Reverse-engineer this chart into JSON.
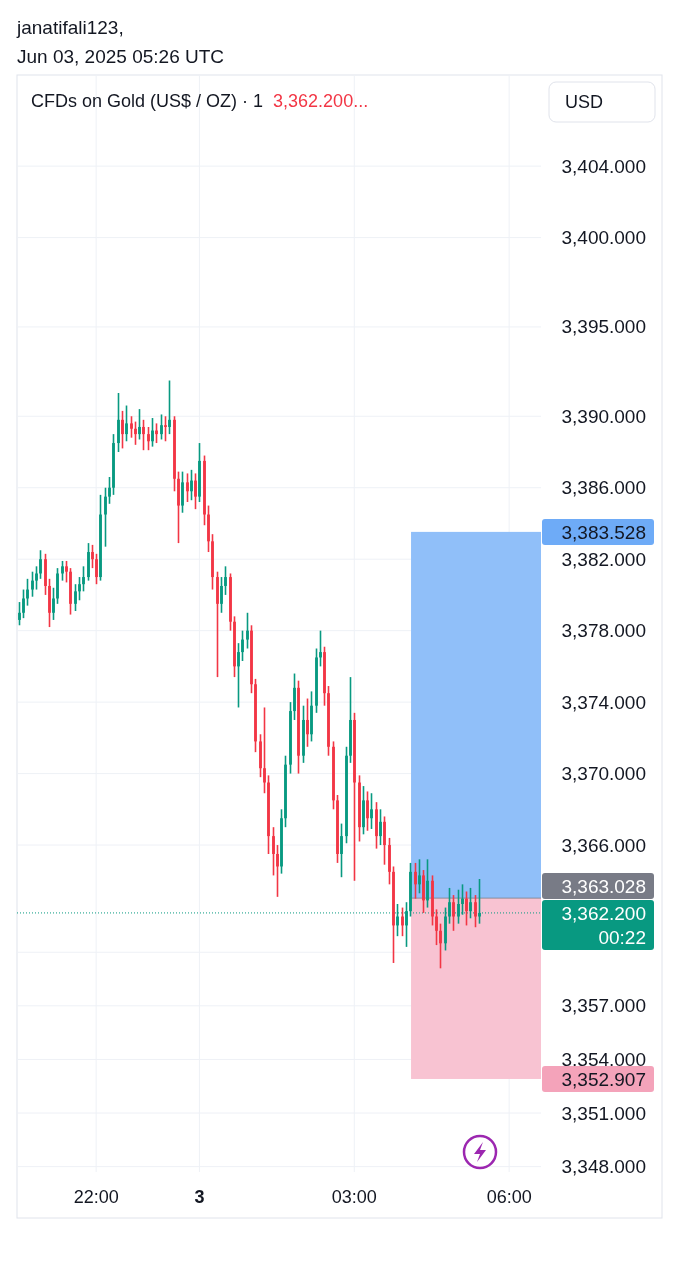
{
  "chart_data": {
    "type": "candlestick",
    "title": "CFDs on Gold (US$ / OZ) · 1",
    "subtitle": "3,362.200...",
    "ylabel": "USD",
    "annotations": [
      "janatifali123,",
      "Jun 03, 2025 05:26 UTC"
    ],
    "x": [
      "2025-06-02T20:30",
      "2025-06-02T20:35",
      "2025-06-02T20:40",
      "2025-06-02T20:45",
      "2025-06-02T20:50",
      "2025-06-02T20:55",
      "2025-06-02T21:00",
      "2025-06-02T21:05",
      "2025-06-02T21:10",
      "2025-06-02T21:15",
      "2025-06-02T21:20",
      "2025-06-02T21:25",
      "2025-06-02T21:30",
      "2025-06-02T21:35",
      "2025-06-02T21:40",
      "2025-06-02T21:45",
      "2025-06-02T21:50",
      "2025-06-02T21:55",
      "2025-06-02T22:00",
      "2025-06-02T22:05",
      "2025-06-02T22:10",
      "2025-06-02T22:15",
      "2025-06-02T22:20",
      "2025-06-02T22:25",
      "2025-06-02T22:30",
      "2025-06-02T22:35",
      "2025-06-02T22:40",
      "2025-06-02T22:45",
      "2025-06-02T22:50",
      "2025-06-02T22:55",
      "2025-06-02T23:00",
      "2025-06-02T23:05",
      "2025-06-02T23:10",
      "2025-06-02T23:15",
      "2025-06-02T23:20",
      "2025-06-02T23:25",
      "2025-06-02T23:30",
      "2025-06-02T23:35",
      "2025-06-02T23:40",
      "2025-06-02T23:45",
      "2025-06-02T23:50",
      "2025-06-02T23:55",
      "2025-06-03T00:00",
      "2025-06-03T00:05",
      "2025-06-03T00:10",
      "2025-06-03T00:15",
      "2025-06-03T00:20",
      "2025-06-03T00:25",
      "2025-06-03T00:30",
      "2025-06-03T00:35",
      "2025-06-03T00:40",
      "2025-06-03T00:45",
      "2025-06-03T00:50",
      "2025-06-03T00:55",
      "2025-06-03T01:00",
      "2025-06-03T01:05",
      "2025-06-03T01:10",
      "2025-06-03T01:15",
      "2025-06-03T01:20",
      "2025-06-03T01:25",
      "2025-06-03T01:30",
      "2025-06-03T01:35",
      "2025-06-03T01:40",
      "2025-06-03T01:45",
      "2025-06-03T01:50",
      "2025-06-03T01:55",
      "2025-06-03T02:00",
      "2025-06-03T02:05",
      "2025-06-03T02:10",
      "2025-06-03T02:15",
      "2025-06-03T02:20",
      "2025-06-03T02:25",
      "2025-06-03T02:30",
      "2025-06-03T02:35",
      "2025-06-03T02:40",
      "2025-06-03T02:45",
      "2025-06-03T02:50",
      "2025-06-03T02:55",
      "2025-06-03T03:00",
      "2025-06-03T03:05",
      "2025-06-03T03:10",
      "2025-06-03T03:15",
      "2025-06-03T03:20",
      "2025-06-03T03:25",
      "2025-06-03T03:30",
      "2025-06-03T03:35",
      "2025-06-03T03:40",
      "2025-06-03T03:45",
      "2025-06-03T03:50",
      "2025-06-03T03:55",
      "2025-06-03T04:00",
      "2025-06-03T04:05",
      "2025-06-03T04:10",
      "2025-06-03T04:15",
      "2025-06-03T04:20",
      "2025-06-03T04:25",
      "2025-06-03T04:30",
      "2025-06-03T04:35",
      "2025-06-03T04:40",
      "2025-06-03T04:45",
      "2025-06-03T04:50",
      "2025-06-03T04:55",
      "2025-06-03T05:00",
      "2025-06-03T05:05",
      "2025-06-03T05:10",
      "2025-06-03T05:15",
      "2025-06-03T05:20",
      "2025-06-03T05:25"
    ],
    "ohlc": [
      [
        3378.6,
        3379.6,
        3378.3,
        3379.0
      ],
      [
        3379.0,
        3380.3,
        3378.7,
        3379.8
      ],
      [
        3379.8,
        3380.9,
        3379.4,
        3380.3
      ],
      [
        3380.3,
        3381.3,
        3379.9,
        3380.8
      ],
      [
        3380.8,
        3381.6,
        3380.3,
        3381.2
      ],
      [
        3381.2,
        3382.5,
        3380.9,
        3382.0
      ],
      [
        3382.0,
        3382.3,
        3380.0,
        3380.5
      ],
      [
        3380.5,
        3380.9,
        3378.2,
        3379.0
      ],
      [
        3379.0,
        3380.4,
        3378.6,
        3379.8
      ],
      [
        3379.8,
        3381.5,
        3379.5,
        3381.2
      ],
      [
        3381.2,
        3381.9,
        3380.8,
        3381.6
      ],
      [
        3381.6,
        3381.9,
        3380.7,
        3381.3
      ],
      [
        3381.3,
        3381.5,
        3378.9,
        3379.5
      ],
      [
        3379.5,
        3380.6,
        3379.1,
        3380.2
      ],
      [
        3380.2,
        3381.0,
        3379.7,
        3380.6
      ],
      [
        3380.6,
        3381.6,
        3380.2,
        3381.0
      ],
      [
        3381.0,
        3382.9,
        3380.8,
        3382.4
      ],
      [
        3382.4,
        3382.8,
        3381.5,
        3382.0
      ],
      [
        3382.0,
        3382.3,
        3380.6,
        3381.0
      ],
      [
        3381.0,
        3385.6,
        3380.8,
        3384.5
      ],
      [
        3384.5,
        3386.0,
        3382.7,
        3385.5
      ],
      [
        3385.5,
        3386.6,
        3385.1,
        3386.0
      ],
      [
        3386.0,
        3389.0,
        3385.6,
        3388.5
      ],
      [
        3388.5,
        3391.3,
        3388.0,
        3389.8
      ],
      [
        3389.8,
        3390.3,
        3388.2,
        3389.0
      ],
      [
        3389.0,
        3390.6,
        3388.6,
        3389.6
      ],
      [
        3389.6,
        3390.0,
        3388.8,
        3389.3
      ],
      [
        3389.3,
        3389.7,
        3388.4,
        3389.0
      ],
      [
        3389.0,
        3390.4,
        3388.7,
        3389.4
      ],
      [
        3389.4,
        3389.8,
        3388.1,
        3389.0
      ],
      [
        3389.0,
        3389.4,
        3388.1,
        3388.6
      ],
      [
        3388.6,
        3389.9,
        3388.3,
        3389.2
      ],
      [
        3389.2,
        3389.6,
        3388.5,
        3389.0
      ],
      [
        3389.0,
        3390.1,
        3388.7,
        3389.5
      ],
      [
        3389.5,
        3390.0,
        3388.6,
        3389.4
      ],
      [
        3389.4,
        3392.0,
        3389.0,
        3389.8
      ],
      [
        3389.8,
        3390.0,
        3385.8,
        3386.5
      ],
      [
        3386.5,
        3386.9,
        3382.9,
        3385.0
      ],
      [
        3385.0,
        3386.9,
        3384.6,
        3386.3
      ],
      [
        3386.3,
        3386.8,
        3385.2,
        3385.8
      ],
      [
        3385.8,
        3387.0,
        3385.3,
        3386.4
      ],
      [
        3386.4,
        3386.8,
        3384.8,
        3385.5
      ],
      [
        3385.5,
        3388.5,
        3385.2,
        3387.5
      ],
      [
        3387.5,
        3387.8,
        3383.9,
        3384.5
      ],
      [
        3384.5,
        3385.0,
        3382.4,
        3383.0
      ],
      [
        3383.0,
        3383.4,
        3380.3,
        3381.0
      ],
      [
        3381.0,
        3381.3,
        3375.4,
        3379.5
      ],
      [
        3379.5,
        3381.0,
        3379.0,
        3380.5
      ],
      [
        3380.5,
        3381.6,
        3380.0,
        3381.0
      ],
      [
        3381.0,
        3381.2,
        3378.0,
        3378.5
      ],
      [
        3378.5,
        3378.8,
        3375.4,
        3376.0
      ],
      [
        3376.0,
        3377.3,
        3373.7,
        3376.8
      ],
      [
        3376.8,
        3378.0,
        3376.3,
        3377.5
      ],
      [
        3377.5,
        3379.0,
        3377.0,
        3378.0
      ],
      [
        3378.0,
        3378.3,
        3374.5,
        3375.0
      ],
      [
        3375.0,
        3375.3,
        3371.2,
        3371.8
      ],
      [
        3371.8,
        3372.2,
        3369.8,
        3370.3
      ],
      [
        3370.3,
        3373.7,
        3368.9,
        3369.5
      ],
      [
        3369.5,
        3369.9,
        3365.5,
        3366.5
      ],
      [
        3366.5,
        3367.0,
        3364.3,
        3365.5
      ],
      [
        3365.5,
        3366.0,
        3363.1,
        3364.8
      ],
      [
        3364.8,
        3368.0,
        3364.4,
        3367.5
      ],
      [
        3367.5,
        3371.0,
        3367.0,
        3370.5
      ],
      [
        3370.5,
        3374.0,
        3370.0,
        3373.5
      ],
      [
        3373.5,
        3375.6,
        3373.0,
        3374.8
      ],
      [
        3374.8,
        3375.2,
        3370.0,
        3371.0
      ],
      [
        3371.0,
        3373.8,
        3370.6,
        3373.0
      ],
      [
        3373.0,
        3374.2,
        3371.5,
        3372.2
      ],
      [
        3372.2,
        3374.6,
        3371.8,
        3373.8
      ],
      [
        3373.8,
        3377.0,
        3373.4,
        3376.5
      ],
      [
        3376.5,
        3378.0,
        3376.0,
        3376.8
      ],
      [
        3376.8,
        3377.1,
        3373.8,
        3374.5
      ],
      [
        3374.5,
        3374.9,
        3371.0,
        3371.5
      ],
      [
        3371.5,
        3371.8,
        3368.0,
        3368.5
      ],
      [
        3368.5,
        3368.8,
        3365.0,
        3365.5
      ],
      [
        3365.5,
        3367.2,
        3364.2,
        3366.5
      ],
      [
        3366.5,
        3371.5,
        3366.1,
        3371.0
      ],
      [
        3371.0,
        3375.4,
        3370.6,
        3373.0
      ],
      [
        3373.0,
        3373.4,
        3364.0,
        3369.5
      ],
      [
        3369.5,
        3369.9,
        3366.2,
        3367.0
      ],
      [
        3367.0,
        3369.3,
        3366.6,
        3368.5
      ],
      [
        3368.5,
        3369.0,
        3366.8,
        3367.5
      ],
      [
        3367.5,
        3368.9,
        3366.9,
        3368.0
      ],
      [
        3368.0,
        3368.4,
        3365.8,
        3366.5
      ],
      [
        3366.5,
        3368.0,
        3366.0,
        3367.3
      ],
      [
        3367.3,
        3367.6,
        3364.9,
        3366.0
      ],
      [
        3366.0,
        3366.4,
        3363.8,
        3364.5
      ],
      [
        3364.5,
        3364.8,
        3359.4,
        3361.5
      ],
      [
        3361.5,
        3362.7,
        3360.9,
        3362.0
      ],
      [
        3362.0,
        3362.5,
        3360.9,
        3361.5
      ],
      [
        3361.5,
        3362.8,
        3360.3,
        3362.3
      ],
      [
        3362.3,
        3365.0,
        3362.0,
        3364.5
      ],
      [
        3364.5,
        3365.0,
        3363.0,
        3363.8
      ],
      [
        3363.8,
        3365.2,
        3363.3,
        3364.3
      ],
      [
        3364.3,
        3364.6,
        3362.2,
        3362.9
      ],
      [
        3362.9,
        3365.2,
        3362.5,
        3364.0
      ],
      [
        3364.0,
        3364.3,
        3361.5,
        3362.0
      ],
      [
        3362.0,
        3362.4,
        3360.4,
        3361.2
      ],
      [
        3361.2,
        3361.6,
        3359.1,
        3360.5
      ],
      [
        3360.5,
        3362.5,
        3360.1,
        3362.0
      ],
      [
        3362.0,
        3363.6,
        3361.6,
        3362.8
      ],
      [
        3362.8,
        3363.2,
        3361.2,
        3362.0
      ],
      [
        3362.0,
        3363.5,
        3361.6,
        3362.7
      ],
      [
        3362.7,
        3363.8,
        3362.1,
        3363.0
      ],
      [
        3363.0,
        3363.4,
        3361.5,
        3362.3
      ],
      [
        3362.3,
        3363.6,
        3361.9,
        3362.8
      ],
      [
        3362.8,
        3363.2,
        3361.4,
        3362.0
      ],
      [
        3362.0,
        3364.1,
        3361.6,
        3362.2
      ]
    ],
    "colors": [
      "#089981",
      "#089981",
      "#089981",
      "#089981",
      "#089981",
      "#089981",
      "#f23645",
      "#f23645",
      "#089981",
      "#089981",
      "#089981",
      "#f23645",
      "#f23645",
      "#089981",
      "#089981",
      "#089981",
      "#089981",
      "#f23645",
      "#f23645",
      "#089981",
      "#089981",
      "#089981",
      "#089981",
      "#089981",
      "#f23645",
      "#089981",
      "#f23645",
      "#f23645",
      "#089981",
      "#f23645",
      "#f23645",
      "#089981",
      "#f23645",
      "#089981",
      "#f23645",
      "#089981",
      "#f23645",
      "#f23645",
      "#089981",
      "#f23645",
      "#089981",
      "#f23645",
      "#089981",
      "#f23645",
      "#f23645",
      "#f23645",
      "#f23645",
      "#089981",
      "#089981",
      "#f23645",
      "#f23645",
      "#089981",
      "#089981",
      "#089981",
      "#f23645",
      "#f23645",
      "#f23645",
      "#f23645",
      "#f23645",
      "#f23645",
      "#f23645",
      "#089981",
      "#089981",
      "#089981",
      "#089981",
      "#f23645",
      "#089981",
      "#f23645",
      "#089981",
      "#089981",
      "#089981",
      "#f23645",
      "#f23645",
      "#f23645",
      "#f23645",
      "#089981",
      "#089981",
      "#089981",
      "#f23645",
      "#f23645",
      "#089981",
      "#f23645",
      "#089981",
      "#f23645",
      "#089981",
      "#f23645",
      "#f23645",
      "#f23645",
      "#089981",
      "#f23645",
      "#089981",
      "#089981",
      "#f23645",
      "#089981",
      "#f23645",
      "#089981",
      "#f23645",
      "#f23645",
      "#f23645",
      "#089981",
      "#089981",
      "#f23645",
      "#089981",
      "#089981",
      "#f23645",
      "#089981",
      "#f23645",
      "#089981"
    ],
    "xlim": [
      "2025-06-02T20:28",
      "2025-06-03T06:37"
    ],
    "xticks": [
      {
        "value": "2025-06-02T22:00",
        "label": "22:00"
      },
      {
        "value": "2025-06-03T00:00",
        "label": "3"
      },
      {
        "value": "2025-06-03T03:00",
        "label": "03:00"
      },
      {
        "value": "2025-06-03T06:00",
        "label": "06:00"
      }
    ],
    "ylim": [
      3347.7,
      3409.1
    ],
    "yticks": [
      {
        "value": 3348,
        "label": "3,348.000"
      },
      {
        "value": 3351,
        "label": "3,351.000"
      },
      {
        "value": 3354,
        "label": "3,354.000"
      },
      {
        "value": 3357,
        "label": "3,357.000"
      },
      {
        "value": 3360,
        "label": null
      },
      {
        "value": 3366,
        "label": "3,366.000"
      },
      {
        "value": 3370,
        "label": "3,370.000"
      },
      {
        "value": 3374,
        "label": "3,374.000"
      },
      {
        "value": 3378,
        "label": "3,378.000"
      },
      {
        "value": 3382,
        "label": "3,382.000"
      },
      {
        "value": 3386,
        "label": "3,386.000"
      },
      {
        "value": 3390,
        "label": "3,390.000"
      },
      {
        "value": 3395,
        "label": "3,395.000"
      },
      {
        "value": 3400,
        "label": "3,400.000"
      },
      {
        "value": 3404,
        "label": "3,404.000"
      }
    ],
    "grid": true,
    "bands": [
      {
        "axis": "y",
        "from": 3363.028,
        "to": 3383.528,
        "label": "3,383.528",
        "color": "#90bff9"
      },
      {
        "axis": "y",
        "from": 3352.907,
        "to": 3363.028,
        "label": "3,352.907",
        "color": "#f8c3d2"
      }
    ],
    "ref_lines": [
      {
        "axis": "y",
        "value": 3363.028,
        "label": "3,363.028",
        "color": "#787b86"
      },
      {
        "axis": "y",
        "value": 3362.2,
        "label": "3,362.200\n00:22",
        "color": "#089981",
        "line_style": "dotted"
      }
    ]
  }
}
